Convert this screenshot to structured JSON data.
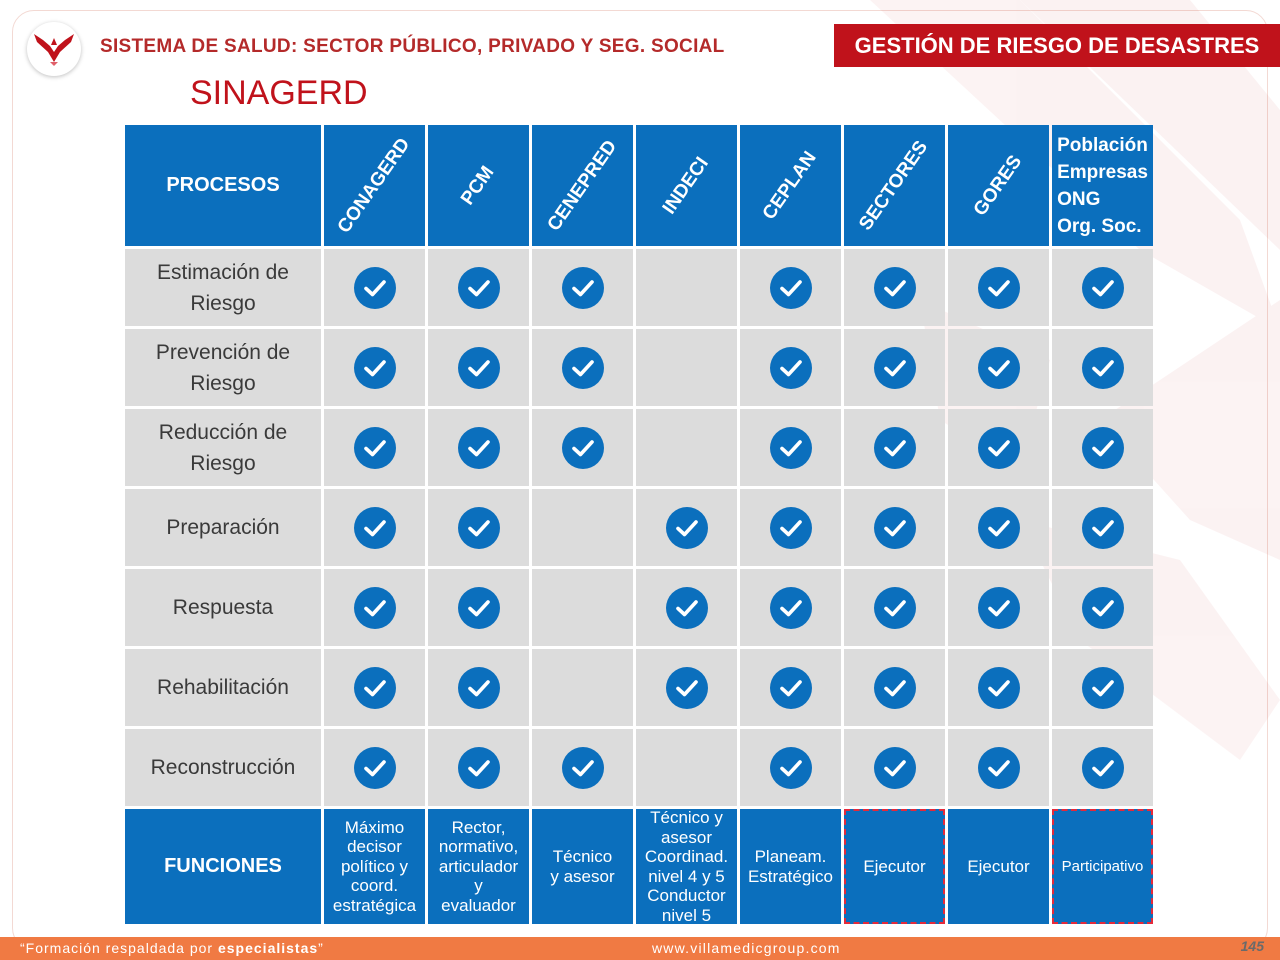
{
  "header": {
    "title": "SISTEMA DE SALUD: SECTOR PÚBLICO, PRIVADO Y SEG. SOCIAL",
    "badge": "GESTIÓN DE RIESGO DE DESASTRES",
    "logo_icon": "phoenix-logo-icon"
  },
  "page_title": "SINAGERD",
  "table": {
    "procesos_label": "PROCESOS",
    "columns": [
      "CONAGERD",
      "PCM",
      "CENEPRED",
      "INDECI",
      "CEPLAN",
      "SECTORES",
      "GORES"
    ],
    "last_column": [
      "Población",
      "Empresas",
      "ONG",
      "Org. Soc."
    ],
    "rows": [
      {
        "label": [
          "Estimación de",
          "Riesgo"
        ],
        "marks": [
          true,
          true,
          true,
          false,
          true,
          true,
          true,
          true
        ]
      },
      {
        "label": [
          "Prevención de",
          "Riesgo"
        ],
        "marks": [
          true,
          true,
          true,
          false,
          true,
          true,
          true,
          true
        ]
      },
      {
        "label": [
          "Reducción de",
          "Riesgo"
        ],
        "marks": [
          true,
          true,
          true,
          false,
          true,
          true,
          true,
          true
        ]
      },
      {
        "label": [
          "Preparación"
        ],
        "marks": [
          true,
          true,
          false,
          true,
          true,
          true,
          true,
          true
        ]
      },
      {
        "label": [
          "Respuesta"
        ],
        "marks": [
          true,
          true,
          false,
          true,
          true,
          true,
          true,
          true
        ]
      },
      {
        "label": [
          "Rehabilitación"
        ],
        "marks": [
          true,
          true,
          false,
          true,
          true,
          true,
          true,
          true
        ]
      },
      {
        "label": [
          "Reconstrucción"
        ],
        "marks": [
          true,
          true,
          true,
          false,
          true,
          true,
          true,
          true
        ]
      }
    ],
    "funciones_label": "FUNCIONES",
    "functions": [
      [
        "Máximo",
        "decisor",
        "político y",
        "coord.",
        "estratégica"
      ],
      [
        "Rector,",
        "normativo,",
        "articulador",
        "y",
        "evaluador"
      ],
      [
        "Técnico",
        "y asesor"
      ],
      [
        "Técnico y",
        "asesor",
        "Coordinad.",
        "nivel 4 y 5",
        "Conductor",
        "nivel 5"
      ],
      [
        "Planeam.",
        "Estratégico"
      ],
      [
        "Ejecutor"
      ],
      [
        "Ejecutor"
      ],
      [
        "Participativo"
      ]
    ],
    "check_icon": "check-circle-icon",
    "colors": {
      "header_blue": "#0b6fbd",
      "cell_gray": "#dcdcdc",
      "accent_red": "#c0121b",
      "footer_orange": "#f07a43"
    }
  },
  "footer": {
    "quote_prefix": "“Formación respaldada por ",
    "quote_bold": "especialistas",
    "quote_suffix": "”",
    "website": "www.villamedicgroup.com",
    "page_number": "145"
  }
}
